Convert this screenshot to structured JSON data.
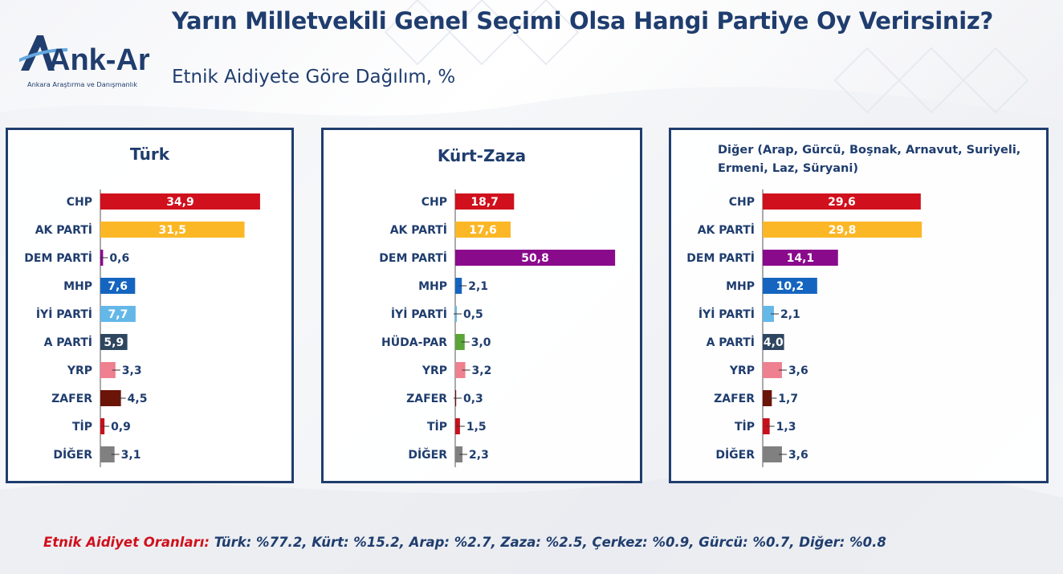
{
  "title": "Yarın Milletvekili Genel Seçimi Olsa Hangi Partiye Oy Verirsiniz?",
  "subtitle": "Etnik Aidiyete Göre Dağılım, %",
  "logo": {
    "name": "Ank-Ar",
    "tagline": "Ankara Araştırma ve Danışmanlık"
  },
  "footer": {
    "label": "Etnik Aidiyet Oranları:",
    "text": " Türk: %77.2, Kürt: %15.2, Arap: %2.7, Zaza: %2.5, Çerkez: %0.9, Gürcü: %0.7, Diğer: %0.8"
  },
  "colors": {
    "CHP": "#d0101c",
    "AK PARTİ": "#fbb726",
    "DEM PARTİ": "#8a0a8c",
    "MHP": "#1565c0",
    "İYİ PARTİ": "#64b8e8",
    "A PARTİ": "#2e4660",
    "YRP": "#ee8090",
    "ZAFER": "#6b1408",
    "TİP": "#c8101c",
    "HÜDA-PAR": "#5aa43a",
    "DİĞER": "#808080",
    "title": "#1f3d6e",
    "footer_label": "#d0101c"
  },
  "chart_data": [
    {
      "type": "bar",
      "orientation": "horizontal",
      "title": "Türk",
      "categories": [
        "CHP",
        "AK PARTİ",
        "DEM PARTİ",
        "MHP",
        "İYİ PARTİ",
        "A PARTİ",
        "YRP",
        "ZAFER",
        "TİP",
        "DİĞER"
      ],
      "values": [
        34.9,
        31.5,
        0.6,
        7.6,
        7.7,
        5.9,
        3.3,
        4.5,
        0.9,
        3.1
      ],
      "labels": [
        "34,9",
        "31,5",
        "0,6",
        "7,6",
        "7,7",
        "5,9",
        "3,3",
        "4,5",
        "0,9",
        "3,1"
      ]
    },
    {
      "type": "bar",
      "orientation": "horizontal",
      "title": "Kürt-Zaza",
      "categories": [
        "CHP",
        "AK PARTİ",
        "DEM PARTİ",
        "MHP",
        "İYİ PARTİ",
        "HÜDA-PAR",
        "YRP",
        "ZAFER",
        "TİP",
        "DİĞER"
      ],
      "values": [
        18.7,
        17.6,
        50.8,
        2.1,
        0.5,
        3.0,
        3.2,
        0.3,
        1.5,
        2.3
      ],
      "labels": [
        "18,7",
        "17,6",
        "50,8",
        "2,1",
        "0,5",
        "3,0",
        "3,2",
        "0,3",
        "1,5",
        "2,3"
      ]
    },
    {
      "type": "bar",
      "orientation": "horizontal",
      "title": "Diğer (Arap, Gürcü, Boşnak, Arnavut, Suriyeli, Ermeni, Laz, Süryani)",
      "categories": [
        "CHP",
        "AK PARTİ",
        "DEM PARTİ",
        "MHP",
        "İYİ PARTİ",
        "A PARTİ",
        "YRP",
        "ZAFER",
        "TİP",
        "DİĞER"
      ],
      "values": [
        29.6,
        29.8,
        14.1,
        10.2,
        2.1,
        4.0,
        3.6,
        1.7,
        1.3,
        3.6
      ],
      "labels": [
        "29,6",
        "29,8",
        "14,1",
        "10,2",
        "2,1",
        "4,0",
        "3,6",
        "1,7",
        "1,3",
        "3,6"
      ]
    }
  ]
}
